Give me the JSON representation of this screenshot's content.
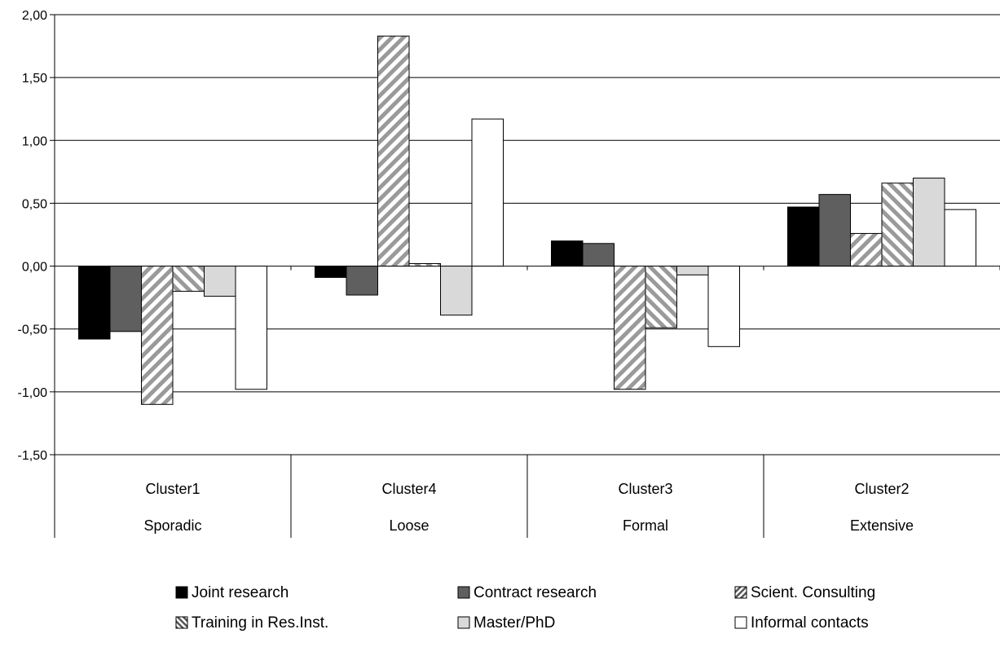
{
  "chart_data": {
    "type": "bar",
    "categories": [
      {
        "line1": "Cluster1",
        "line2": "Sporadic"
      },
      {
        "line1": "Cluster4",
        "line2": "Loose"
      },
      {
        "line1": "Cluster3",
        "line2": "Formal"
      },
      {
        "line1": "Cluster2",
        "line2": "Extensive"
      }
    ],
    "series": [
      {
        "name": "Joint research",
        "pattern": "black",
        "values": [
          -0.58,
          -0.09,
          0.2,
          0.47
        ]
      },
      {
        "name": "Contract research",
        "pattern": "darkgray",
        "values": [
          -0.52,
          -0.23,
          0.18,
          0.57
        ]
      },
      {
        "name": "Scient. Consulting",
        "pattern": "hatch-forward",
        "values": [
          -1.1,
          1.83,
          -0.98,
          0.26
        ]
      },
      {
        "name": "Training in Res.Inst.",
        "pattern": "hatch-back",
        "values": [
          -0.2,
          0.02,
          -0.49,
          0.66
        ]
      },
      {
        "name": "Master/PhD",
        "pattern": "lightgray",
        "values": [
          -0.24,
          -0.39,
          -0.07,
          0.7
        ]
      },
      {
        "name": "Informal contacts",
        "pattern": "white",
        "values": [
          -0.98,
          1.17,
          -0.64,
          0.45
        ]
      }
    ],
    "ylim": [
      -1.5,
      2.0
    ],
    "yticks": [
      "-1,50",
      "-1,00",
      "-0,50",
      "0,00",
      "0,50",
      "1,00",
      "1,50",
      "2,00"
    ],
    "ytick_values": [
      -1.5,
      -1.0,
      -0.5,
      0.0,
      0.5,
      1.0,
      1.5,
      2.0
    ],
    "grid": true,
    "legend_position": "bottom"
  },
  "colors": {
    "black": "#000000",
    "darkgray": "#5f5f5f",
    "lightgray": "#d9d9d9",
    "white": "#ffffff",
    "hatch": "#9a9a9a"
  }
}
